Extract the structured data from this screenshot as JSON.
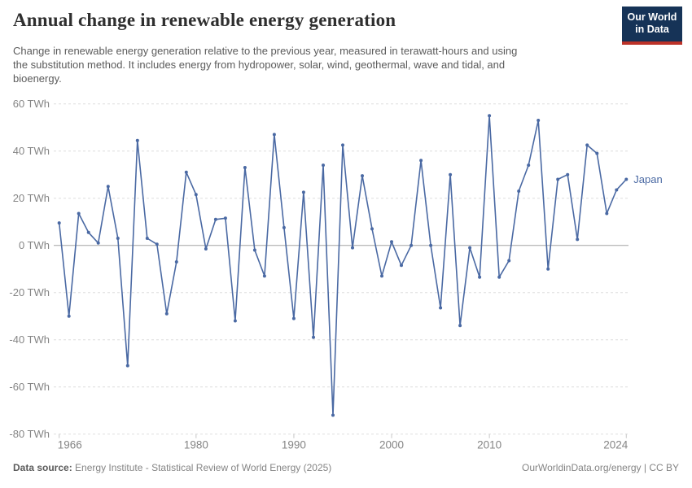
{
  "header": {
    "title": "Annual change in renewable energy generation",
    "subtitle_lines": [
      "Change in renewable energy generation relative to the previous year, measured in terawatt-hours and using",
      "the substitution method. It includes energy from hydropower, solar, wind, geothermal, wave and tidal, and",
      "bioenergy."
    ]
  },
  "logo": {
    "line1": "Our World",
    "line2": "in Data",
    "bg_color": "#163357",
    "accent_color": "#bc3228"
  },
  "chart_data": {
    "type": "line",
    "title": "Annual change in renewable energy generation",
    "unit": "TWh",
    "series": [
      {
        "name": "Japan",
        "color": "#4a69a3",
        "values": [
          9.5,
          -30,
          13.5,
          5.5,
          1,
          25,
          3,
          -51,
          44.5,
          3,
          0.5,
          -29,
          -7,
          31,
          21.5,
          -1.5,
          11,
          11.5,
          -32,
          33,
          -2,
          -13,
          47,
          7.5,
          -31,
          22.5,
          -39,
          34,
          -72,
          42.5,
          -1,
          29.5,
          7,
          -13,
          1.5,
          -8.5,
          0,
          36,
          0,
          -26.5,
          30,
          -34,
          -1,
          -13.5,
          55,
          -13.5,
          -6.5,
          23,
          34,
          53,
          -10,
          28,
          30,
          2.5,
          42.5,
          39,
          13.5,
          23.5,
          28
        ]
      }
    ],
    "x": [
      1966,
      1967,
      1968,
      1969,
      1970,
      1971,
      1972,
      1973,
      1974,
      1975,
      1976,
      1977,
      1978,
      1979,
      1980,
      1981,
      1982,
      1983,
      1984,
      1985,
      1986,
      1987,
      1988,
      1989,
      1990,
      1991,
      1992,
      1993,
      1994,
      1995,
      1996,
      1997,
      1998,
      1999,
      2000,
      2001,
      2002,
      2003,
      2004,
      2005,
      2006,
      2007,
      2008,
      2009,
      2010,
      2011,
      2012,
      2013,
      2014,
      2015,
      2016,
      2017,
      2018,
      2019,
      2020,
      2021,
      2022,
      2023,
      2024
    ],
    "xlim": [
      1966,
      2024
    ],
    "ylim": [
      -80,
      60
    ],
    "yticks": [
      60,
      40,
      20,
      0,
      -20,
      -40,
      -60,
      -80
    ],
    "ytick_suffix": " TWh",
    "xticks": [
      1966,
      1980,
      1990,
      2000,
      2010,
      2024
    ],
    "grid": "horizontal-dashed",
    "legend_position": "end-of-line-label",
    "entity_label": "Japan"
  },
  "footer": {
    "source_label": "Data source:",
    "source_text": "Energy Institute - Statistical Review of World Energy (2025)",
    "credit_text": "OurWorldinData.org/energy | CC BY"
  }
}
